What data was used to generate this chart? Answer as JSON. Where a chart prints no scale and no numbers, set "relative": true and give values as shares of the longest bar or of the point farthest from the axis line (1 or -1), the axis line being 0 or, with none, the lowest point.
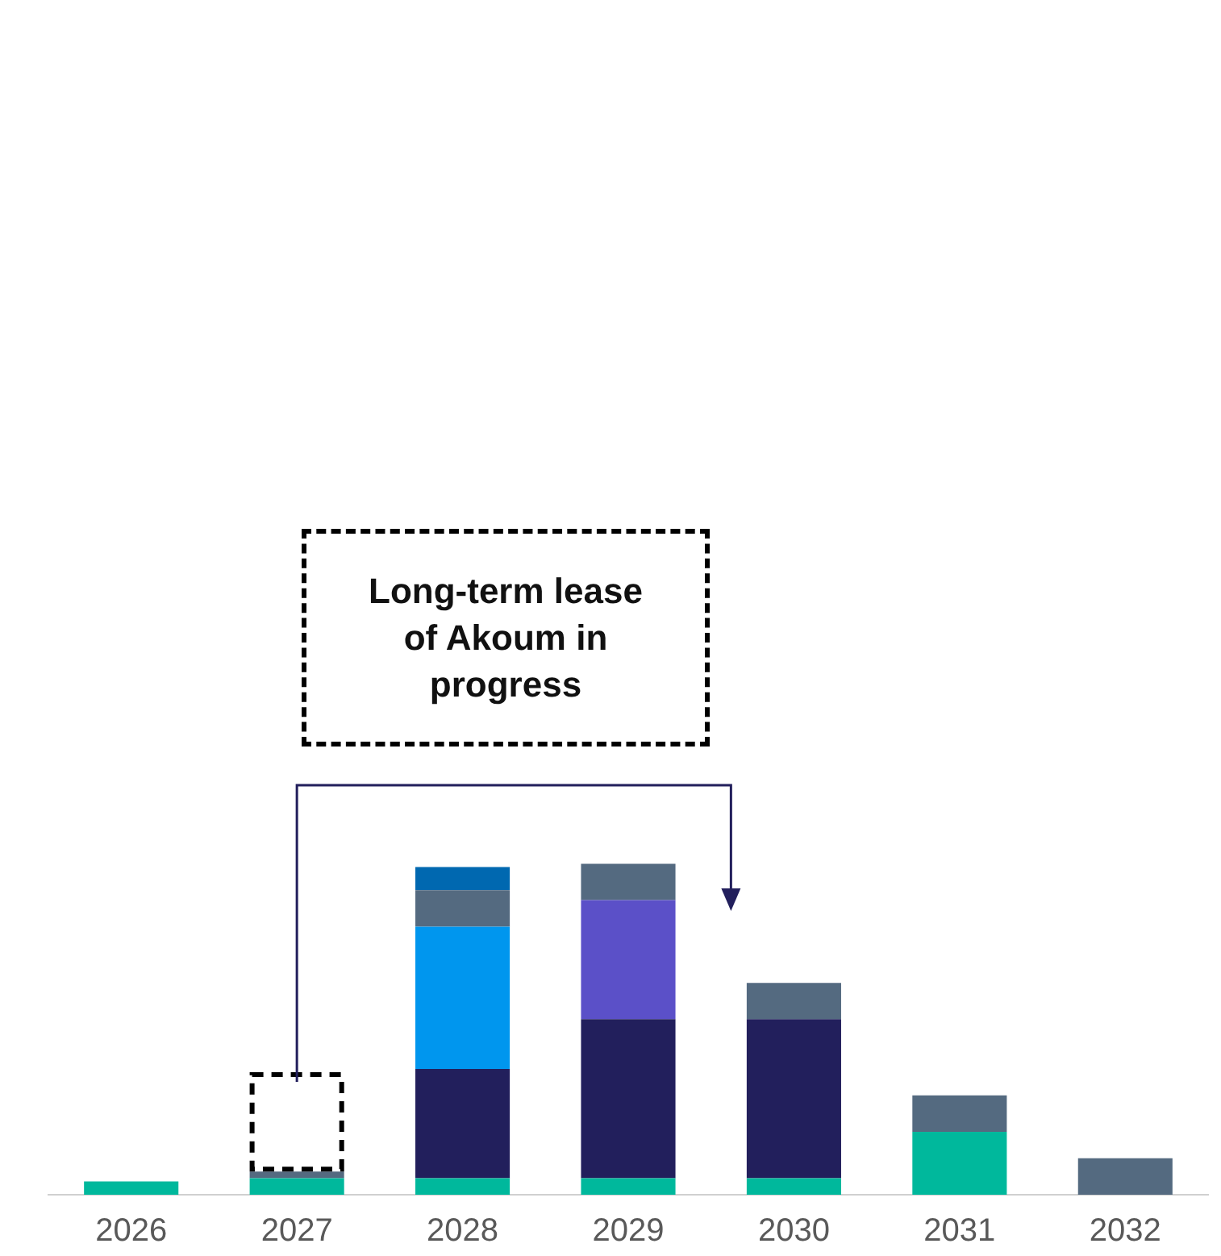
{
  "chart_data": {
    "type": "bar",
    "stacked": true,
    "relative": true,
    "legend": false,
    "categories": [
      "2026",
      "2027",
      "2028",
      "2029",
      "2030",
      "2031",
      "2032"
    ],
    "series": [
      {
        "color": "#00b89c",
        "values": [
          0.04,
          0.05,
          0.05,
          0.05,
          0.05,
          0.19,
          null
        ]
      },
      {
        "color": "#221f5c",
        "values": [
          null,
          null,
          0.33,
          0.48,
          0.48,
          null,
          null
        ]
      },
      {
        "color": "#0096ee",
        "values": [
          null,
          null,
          0.43,
          null,
          null,
          null,
          null
        ]
      },
      {
        "color": "#5b50c8",
        "values": [
          null,
          null,
          null,
          0.36,
          null,
          null,
          null
        ]
      },
      {
        "color": "#546a80",
        "values": [
          null,
          0.02,
          0.11,
          0.11,
          0.11,
          0.11,
          0.11
        ]
      },
      {
        "color": "#0068b0",
        "values": [
          null,
          null,
          0.07,
          null,
          null,
          null,
          null
        ]
      },
      {
        "color": "#000000",
        "line_style": "dashed",
        "values": [
          null,
          0.3,
          null,
          null,
          null,
          null,
          null
        ]
      }
    ],
    "annotations": [
      "Long-term lease of Akoum in progress"
    ]
  }
}
